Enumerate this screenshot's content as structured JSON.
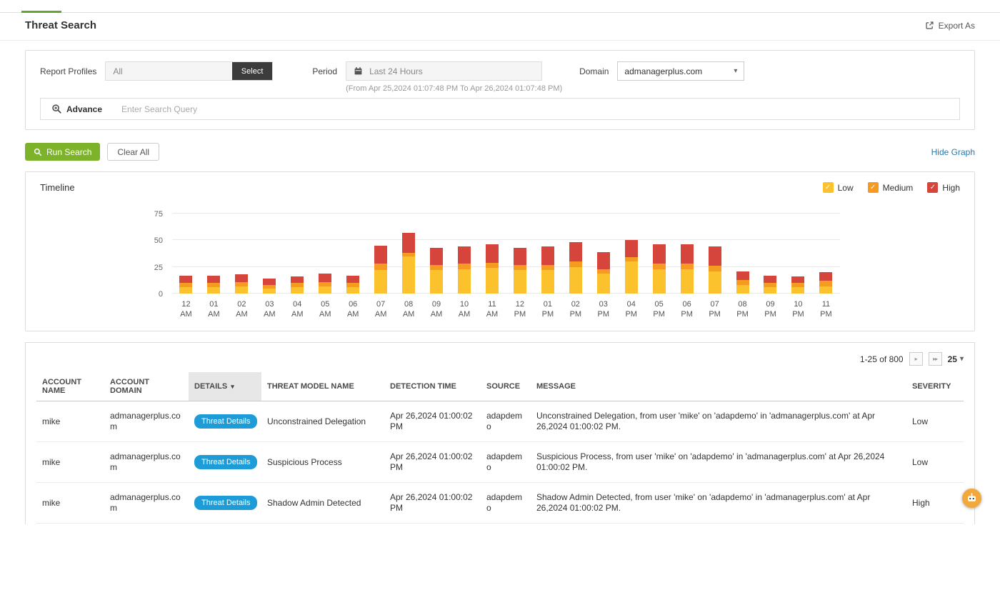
{
  "page": {
    "title": "Threat Search",
    "export_label": "Export As"
  },
  "filters": {
    "report_profiles_label": "Report Profiles",
    "report_profiles_value": "All",
    "select_button_label": "Select",
    "period_label": "Period",
    "period_value": "Last 24 Hours",
    "period_range": "(From Apr 25,2024 01:07:48 PM To Apr 26,2024 01:07:48 PM)",
    "domain_label": "Domain",
    "domain_value": "admanagerplus.com",
    "advance_label": "Advance",
    "search_placeholder": "Enter Search Query"
  },
  "actions": {
    "run_search_label": "Run Search",
    "clear_all_label": "Clear All",
    "hide_graph_label": "Hide Graph"
  },
  "chart_data": {
    "type": "bar",
    "stacked": true,
    "title": "Timeline",
    "xlabel": "",
    "ylabel": "",
    "grid": true,
    "legend_position": "top-right",
    "ylim": [
      0,
      75
    ],
    "yticks": [
      0,
      25,
      50,
      75
    ],
    "categories": [
      "12 AM",
      "01 AM",
      "02 AM",
      "03 AM",
      "04 AM",
      "05 AM",
      "06 AM",
      "07 AM",
      "08 AM",
      "09 AM",
      "10 AM",
      "11 AM",
      "12 PM",
      "01 PM",
      "02 PM",
      "03 PM",
      "04 PM",
      "05 PM",
      "06 PM",
      "07 PM",
      "08 PM",
      "09 PM",
      "10 PM",
      "11 PM"
    ],
    "series": [
      {
        "name": "Low",
        "color": "#fcc22d",
        "values": [
          6,
          6,
          7,
          5,
          6,
          7,
          6,
          22,
          35,
          22,
          23,
          24,
          22,
          22,
          25,
          19,
          30,
          23,
          23,
          21,
          8,
          6,
          6,
          7
        ]
      },
      {
        "name": "Medium",
        "color": "#f59b22",
        "values": [
          4,
          4,
          4,
          3,
          4,
          4,
          4,
          6,
          3,
          5,
          5,
          5,
          5,
          5,
          5,
          4,
          4,
          5,
          5,
          5,
          5,
          4,
          4,
          5
        ]
      },
      {
        "name": "High",
        "color": "#d5453b",
        "values": [
          7,
          7,
          7,
          6,
          6,
          8,
          7,
          17,
          19,
          16,
          16,
          17,
          16,
          17,
          18,
          16,
          16,
          18,
          18,
          18,
          8,
          7,
          6,
          8
        ]
      }
    ]
  },
  "pagination": {
    "range_label": "1-25 of 800",
    "page_size": "25"
  },
  "table": {
    "columns": [
      "ACCOUNT NAME",
      "ACCOUNT DOMAIN",
      "DETAILS",
      "THREAT MODEL NAME",
      "DETECTION TIME",
      "SOURCE",
      "MESSAGE",
      "SEVERITY"
    ],
    "details_col_index": 2,
    "details_button_label": "Threat Details",
    "rows": [
      {
        "account_name": "mike",
        "account_domain": "admanagerplus.com",
        "threat_model": "Unconstrained Delegation",
        "detection_time": "Apr 26,2024 01:00:02 PM",
        "source": "adapdemo",
        "message": "Unconstrained Delegation, from user 'mike' on 'adapdemo' in 'admanagerplus.com' at Apr 26,2024 01:00:02 PM.",
        "severity": "Low"
      },
      {
        "account_name": "mike",
        "account_domain": "admanagerplus.com",
        "threat_model": "Suspicious Process",
        "detection_time": "Apr 26,2024 01:00:02 PM",
        "source": "adapdemo",
        "message": "Suspicious Process, from user 'mike' on 'adapdemo' in 'admanagerplus.com' at Apr 26,2024 01:00:02 PM.",
        "severity": "Low"
      },
      {
        "account_name": "mike",
        "account_domain": "admanagerplus.com",
        "threat_model": "Shadow Admin Detected",
        "detection_time": "Apr 26,2024 01:00:02 PM",
        "source": "adapdemo",
        "message": "Shadow Admin Detected, from user 'mike' on 'adapdemo' in 'admanagerplus.com' at Apr 26,2024 01:00:02 PM.",
        "severity": "High"
      },
      {
        "account_name": "",
        "account_domain": "",
        "threat_model": "",
        "detection_time": "",
        "source": "",
        "message": "",
        "severity": ""
      }
    ]
  }
}
